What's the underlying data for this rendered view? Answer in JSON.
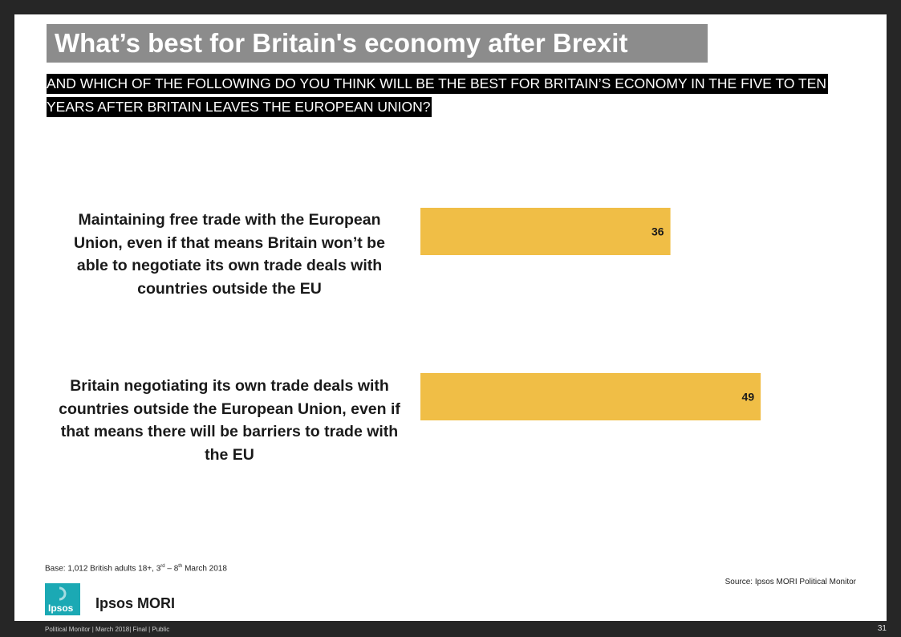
{
  "slide": {
    "title": "What’s best for Britain's economy after Brexit",
    "question": "AND WHICH OF THE FOLLOWING DO YOU THINK WILL BE THE BEST FOR BRITAIN’S ECONOMY IN THE FIVE TO TEN YEARS AFTER BRITAIN LEAVES THE EUROPEAN UNION?",
    "base_prefix": "Base: 1,012 British adults 18+, 3",
    "base_sup1": "rd",
    "base_middle": " – 8",
    "base_sup2": "th",
    "base_suffix": " March 2018",
    "source": "Source: Ipsos MORI Political Monitor",
    "logo_text": "Ipsos",
    "brand": "Ipsos MORI",
    "footer": "Political Monitor | March 2018| Final | Public",
    "page_number": "31"
  },
  "colors": {
    "bar": "#F0BE46",
    "title_bg": "#8C8C8C",
    "question_bg": "#000000",
    "logo": "#1BA9B4"
  },
  "chart_data": {
    "type": "bar",
    "orientation": "horizontal",
    "categories": [
      "Maintaining free trade with the European Union, even if that means Britain won’t be able to negotiate its own trade deals with countries outside the EU",
      "Britain negotiating its own trade deals with countries outside the European Union, even if that means there will be barriers to trade with the EU"
    ],
    "values": [
      36,
      49
    ],
    "value_labels": [
      "36",
      "49"
    ],
    "xlim": [
      0,
      61
    ],
    "grid": false,
    "legend": "none"
  }
}
